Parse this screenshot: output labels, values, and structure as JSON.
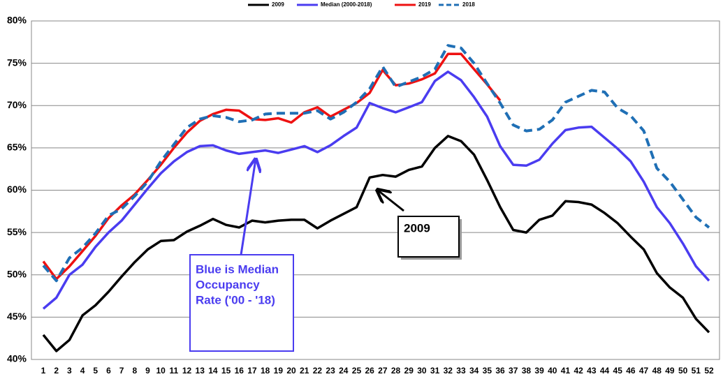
{
  "chart_data": {
    "type": "line",
    "categories": [
      1,
      2,
      3,
      4,
      5,
      6,
      7,
      8,
      9,
      10,
      11,
      12,
      13,
      14,
      15,
      16,
      17,
      18,
      19,
      20,
      21,
      22,
      23,
      24,
      25,
      26,
      27,
      28,
      29,
      30,
      31,
      32,
      33,
      34,
      35,
      36,
      37,
      38,
      39,
      40,
      41,
      42,
      43,
      44,
      45,
      46,
      47,
      48,
      49,
      50,
      51,
      52
    ],
    "series": [
      {
        "name": "2009",
        "color": "#000000",
        "style": "solid",
        "values": [
          42.9,
          41.0,
          42.3,
          45.2,
          46.4,
          48.0,
          49.8,
          51.5,
          53.0,
          54.0,
          54.1,
          55.1,
          55.8,
          56.6,
          55.9,
          55.6,
          56.4,
          56.2,
          56.4,
          56.5,
          56.5,
          55.5,
          56.4,
          57.2,
          58.0,
          61.5,
          61.8,
          61.6,
          62.4,
          62.8,
          65.0,
          66.4,
          65.8,
          64.2,
          61.2,
          58.0,
          55.3,
          55.0,
          56.5,
          57.0,
          58.7,
          58.6,
          58.3,
          57.3,
          56.1,
          54.5,
          53.0,
          50.2,
          48.5,
          47.3,
          44.8,
          43.2
        ]
      },
      {
        "name": "Median (2000-2018)",
        "color": "#4a3cf0",
        "style": "solid",
        "values": [
          46.0,
          47.3,
          50.0,
          51.2,
          53.3,
          55.0,
          56.4,
          58.3,
          60.2,
          62.0,
          63.4,
          64.5,
          65.2,
          65.3,
          64.7,
          64.3,
          64.5,
          64.7,
          64.4,
          64.8,
          65.2,
          64.5,
          65.3,
          66.4,
          67.4,
          70.3,
          69.7,
          69.2,
          69.8,
          70.4,
          72.9,
          74.0,
          73.0,
          71.0,
          68.7,
          65.2,
          63.0,
          62.9,
          63.6,
          65.5,
          67.1,
          67.4,
          67.5,
          66.2,
          64.9,
          63.4,
          61.0,
          58.0,
          56.1,
          53.7,
          51.0,
          49.3
        ]
      },
      {
        "name": "2019",
        "color": "#ee1111",
        "style": "solid",
        "values": [
          51.6,
          49.5,
          51.0,
          52.8,
          54.6,
          56.7,
          58.2,
          59.5,
          61.2,
          63.0,
          65.0,
          66.8,
          68.2,
          69.0,
          69.5,
          69.4,
          68.4,
          68.3,
          68.5,
          68.0,
          69.2,
          69.8,
          68.7,
          69.5,
          70.3,
          71.5,
          74.2,
          72.4,
          72.6,
          73.1,
          73.8,
          76.1,
          76.1,
          74.3,
          72.5,
          70.6,
          null,
          null,
          null,
          null,
          null,
          null,
          null,
          null,
          null,
          null,
          null,
          null,
          null,
          null,
          null,
          null
        ]
      },
      {
        "name": "2018",
        "color": "#1f6fb5",
        "style": "dashed",
        "values": [
          51.1,
          49.3,
          52.0,
          53.2,
          54.9,
          57.0,
          57.8,
          59.3,
          61.0,
          63.4,
          65.4,
          67.4,
          68.4,
          68.8,
          68.6,
          68.1,
          68.3,
          69.0,
          69.1,
          69.1,
          69.1,
          69.4,
          68.4,
          69.2,
          70.4,
          72.0,
          74.6,
          72.2,
          72.8,
          73.4,
          74.3,
          77.1,
          76.8,
          75.0,
          72.6,
          70.3,
          67.7,
          67.0,
          67.2,
          68.3,
          70.4,
          71.1,
          71.8,
          71.6,
          69.7,
          68.8,
          67.0,
          62.6,
          61.0,
          58.9,
          56.8,
          55.6
        ]
      }
    ],
    "ylim": [
      40,
      80
    ],
    "yticks": [
      {
        "value": 40,
        "label": "40%"
      },
      {
        "value": 45,
        "label": "45%"
      },
      {
        "value": 50,
        "label": "50%"
      },
      {
        "value": 55,
        "label": "55%"
      },
      {
        "value": 60,
        "label": "60%"
      },
      {
        "value": 65,
        "label": "65%"
      },
      {
        "value": 70,
        "label": "70%"
      },
      {
        "value": 75,
        "label": "75%"
      },
      {
        "value": 80,
        "label": "80%"
      }
    ],
    "grid": true,
    "legend": "top",
    "annotations": [
      {
        "lines": [
          "Blue is Median",
          "Occupancy",
          "Rate ('00 - '18)"
        ]
      },
      {
        "lines": [
          "2009"
        ]
      }
    ]
  }
}
